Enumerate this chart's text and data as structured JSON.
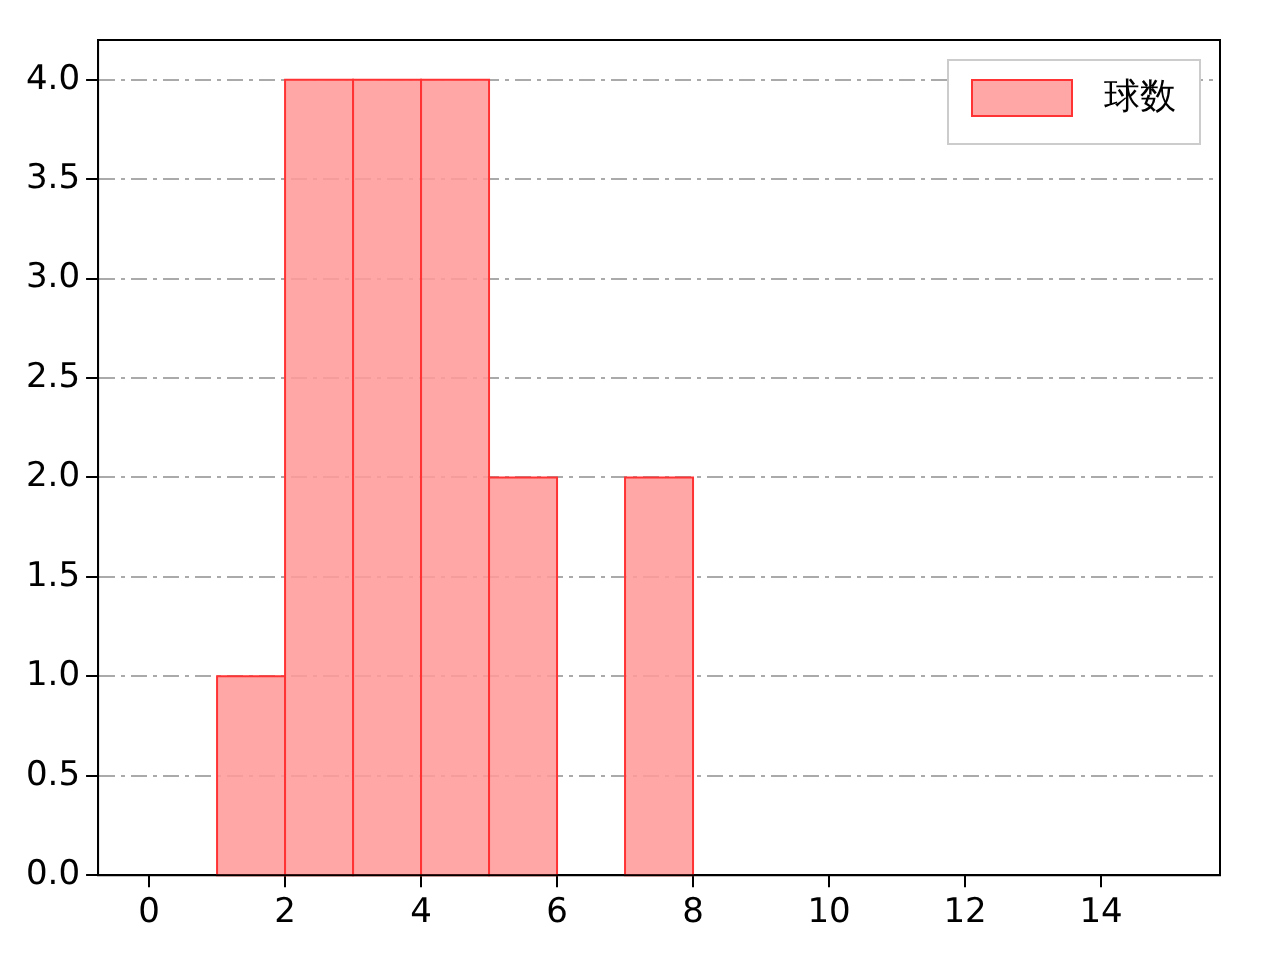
{
  "chart_data": {
    "type": "histogram",
    "bins": [
      1,
      2,
      3,
      4,
      5,
      6,
      7,
      8
    ],
    "series": [
      {
        "name": "球数",
        "color": "#ff9999",
        "values": [
          1,
          4,
          4,
          4,
          2,
          0,
          2
        ]
      }
    ],
    "xlim": [
      -0.75,
      15.75
    ],
    "xticks": [
      0,
      2,
      4,
      6,
      8,
      10,
      12,
      14
    ],
    "ylim": [
      0,
      4.2
    ],
    "yticks": [
      {
        "value": 0,
        "label": "0.0"
      },
      {
        "value": 0.5,
        "label": "0.5"
      },
      {
        "value": 1,
        "label": "1.0"
      },
      {
        "value": 1.5,
        "label": "1.5"
      },
      {
        "value": 2,
        "label": "2.0"
      },
      {
        "value": 2.5,
        "label": "2.5"
      },
      {
        "value": 3,
        "label": "3.0"
      },
      {
        "value": 3.5,
        "label": "3.5"
      },
      {
        "value": 4,
        "label": "4.0"
      }
    ],
    "grid": "y",
    "legend": "top right"
  }
}
